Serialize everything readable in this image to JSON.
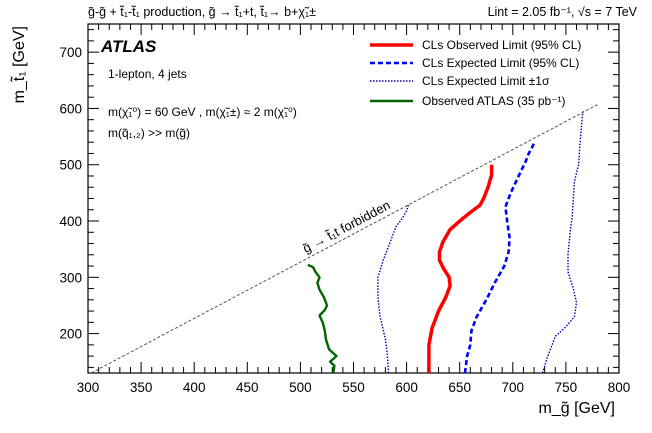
{
  "chart_data": {
    "type": "line",
    "top_left_title": "g̃-g̃ + t̃₁-t̃₁ production, g̃ → t̃₁+t, t̃₁→ b+χ̃₁±",
    "top_right_title": "Lint = 2.05 fb⁻¹, √s = 7 TeV",
    "atlas_label": "ATLAS",
    "selection_label": "1-lepton, 4 jets",
    "assumption_1": "m(χ̃₁⁰) = 60 GeV , m(χ̃₁±) ≈ 2 m(χ̃₁⁰)",
    "assumption_2": "m(q̃₁,₂) >> m(g̃)",
    "forbidden_label": "g̃ → t̃₁t forbidden",
    "xlabel": "m_g̃ [GeV]",
    "ylabel": "m_t̃₁ [GeV]",
    "xlim": [
      300,
      800
    ],
    "ylim": [
      130,
      750
    ],
    "xticks": [
      300,
      350,
      400,
      450,
      500,
      550,
      600,
      650,
      700,
      750,
      800
    ],
    "yticks": [
      200,
      300,
      400,
      500,
      600,
      700
    ],
    "legend_position": "top-right",
    "colors": {
      "observed": "#ff0000",
      "expected": "#0000ff",
      "expected_band": "#0000aa",
      "atlas_35pb": "#006600",
      "diagonal": "#555555"
    },
    "series": [
      {
        "name": "CLs Observed Limit (95% CL)",
        "style": "solid-thick",
        "x": [
          621,
          621,
          624,
          630,
          637,
          641,
          640,
          635,
          631,
          631,
          634,
          641,
          652,
          662,
          669,
          673,
          677,
          680,
          680
        ],
        "y": [
          130,
          180,
          210,
          240,
          265,
          285,
          300,
          315,
          330,
          345,
          362,
          385,
          403,
          418,
          428,
          442,
          462,
          482,
          500
        ]
      },
      {
        "name": "CLs Expected Limit (95% CL)",
        "style": "dashed",
        "x": [
          655,
          657,
          660,
          661,
          666,
          675,
          683,
          692,
          696,
          697,
          695,
          693,
          698,
          703,
          708,
          712,
          715,
          718,
          720
        ],
        "y": [
          130,
          160,
          180,
          205,
          230,
          260,
          290,
          320,
          345,
          370,
          395,
          425,
          450,
          470,
          490,
          505,
          520,
          530,
          538
        ]
      },
      {
        "name": "CLs Expected Limit ±1σ (lower)",
        "style": "dotted",
        "x": [
          583,
          582,
          580,
          575,
          573,
          573,
          578,
          584,
          590,
          596,
          600,
          602
        ],
        "y": [
          130,
          160,
          190,
          230,
          265,
          300,
          330,
          360,
          390,
          405,
          418,
          430
        ]
      },
      {
        "name": "CLs Expected Limit ±1σ (upper)",
        "style": "dotted",
        "x": [
          728,
          733,
          737,
          740,
          750,
          758,
          760,
          757,
          752,
          752,
          754,
          756,
          757,
          758,
          762,
          763,
          764,
          765,
          766
        ],
        "y": [
          130,
          160,
          180,
          195,
          212,
          230,
          255,
          280,
          310,
          340,
          380,
          410,
          440,
          470,
          500,
          530,
          555,
          575,
          595
        ]
      },
      {
        "name": "Observed ATLAS (35 pb⁻¹)",
        "style": "solid",
        "x": [
          531,
          532,
          528,
          534,
          527,
          524,
          523,
          521,
          518,
          523,
          525,
          522,
          518,
          516,
          518,
          514,
          512,
          507
        ],
        "y": [
          130,
          143,
          150,
          160,
          172,
          190,
          205,
          220,
          232,
          242,
          250,
          265,
          278,
          290,
          300,
          310,
          318,
          322
        ]
      }
    ]
  },
  "legend": [
    {
      "label": "CLs Observed Limit (95% CL)",
      "style": "solid-thick",
      "color": "#ff0000"
    },
    {
      "label": "CLs Expected Limit (95% CL)",
      "style": "dashed",
      "color": "#0000ff"
    },
    {
      "label": "CLs Expected Limit ±1σ",
      "style": "dotted",
      "color": "#0000aa"
    },
    {
      "label": "Observed ATLAS (35 pb⁻¹)",
      "style": "solid",
      "color": "#006600"
    }
  ]
}
